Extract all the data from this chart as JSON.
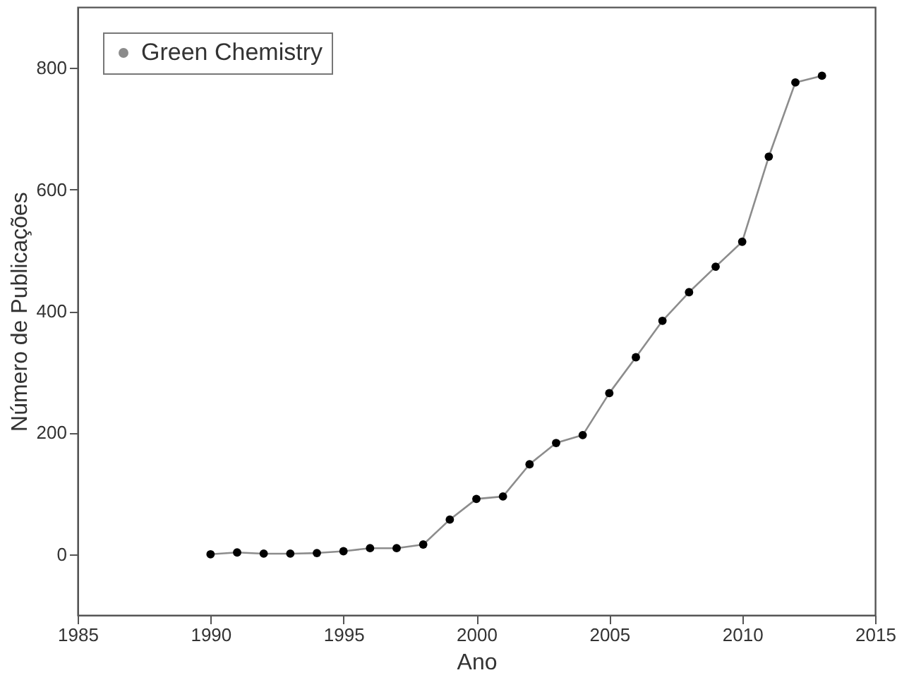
{
  "chart_data": {
    "type": "line",
    "xlabel": "Ano",
    "ylabel": "Número de Publicações",
    "x": [
      1990,
      1991,
      1992,
      1993,
      1994,
      1995,
      1996,
      1997,
      1998,
      1999,
      2000,
      2001,
      2002,
      2003,
      2004,
      2005,
      2006,
      2007,
      2008,
      2009,
      2010,
      2011,
      2012,
      2013
    ],
    "series": [
      {
        "name": "Green Chemistry",
        "color": "#000000",
        "values": [
          0,
          3,
          1,
          1,
          2,
          5,
          10,
          10,
          16,
          57,
          91,
          95,
          148,
          183,
          196,
          265,
          324,
          384,
          431,
          473,
          514,
          654,
          776,
          787
        ]
      }
    ],
    "xlim": [
      1985,
      2015
    ],
    "xticks": [
      1985,
      1990,
      1995,
      2000,
      2005,
      2010,
      2015
    ],
    "ylim": [
      -100,
      900
    ],
    "yticks": [
      0,
      200,
      400,
      600,
      800
    ],
    "marker": "circle",
    "line_style": "solid",
    "legend": "top left",
    "grid": false
  }
}
